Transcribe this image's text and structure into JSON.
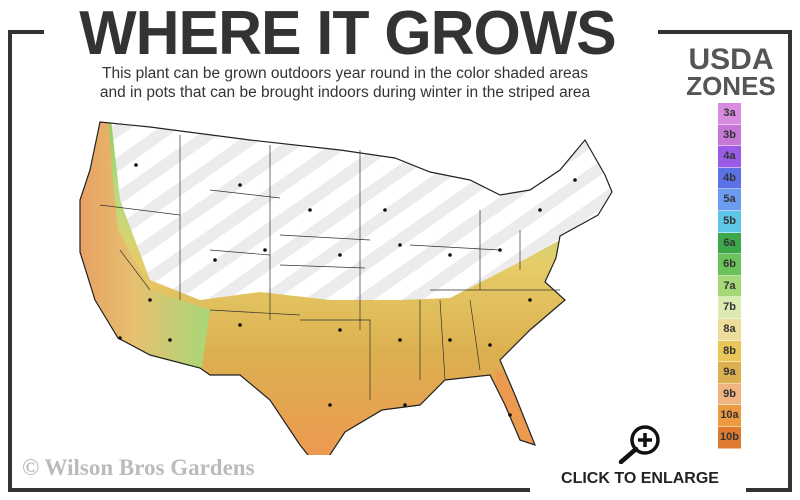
{
  "title": "WHERE IT GROWS",
  "subtitle_line1": "This plant can be grown outdoors year round in the color shaded areas",
  "subtitle_line2": "and in pots that can be brought indoors during winter in the striped area",
  "legend": {
    "title_line1": "USDA",
    "title_line2": "ZONES",
    "zones": [
      {
        "label": "3a",
        "color": "#d98be0"
      },
      {
        "label": "3b",
        "color": "#c678d6"
      },
      {
        "label": "4a",
        "color": "#9a5ce6"
      },
      {
        "label": "4b",
        "color": "#5a72e6"
      },
      {
        "label": "5a",
        "color": "#6c9cf2"
      },
      {
        "label": "5b",
        "color": "#5ec6e6"
      },
      {
        "label": "6a",
        "color": "#3da84a"
      },
      {
        "label": "6b",
        "color": "#6cc25a"
      },
      {
        "label": "7a",
        "color": "#a6d878"
      },
      {
        "label": "7b",
        "color": "#daeab0"
      },
      {
        "label": "8a",
        "color": "#eedc9a"
      },
      {
        "label": "8b",
        "color": "#e8c658"
      },
      {
        "label": "9a",
        "color": "#dcb050"
      },
      {
        "label": "9b",
        "color": "#f0b480"
      },
      {
        "label": "10a",
        "color": "#ec9a40"
      },
      {
        "label": "10b",
        "color": "#e07a30"
      }
    ]
  },
  "copyright": "© Wilson Bros Gardens",
  "enlarge_label": "CLICK TO ENLARGE",
  "icons": {
    "enlarge": "magnifier-plus-icon"
  }
}
